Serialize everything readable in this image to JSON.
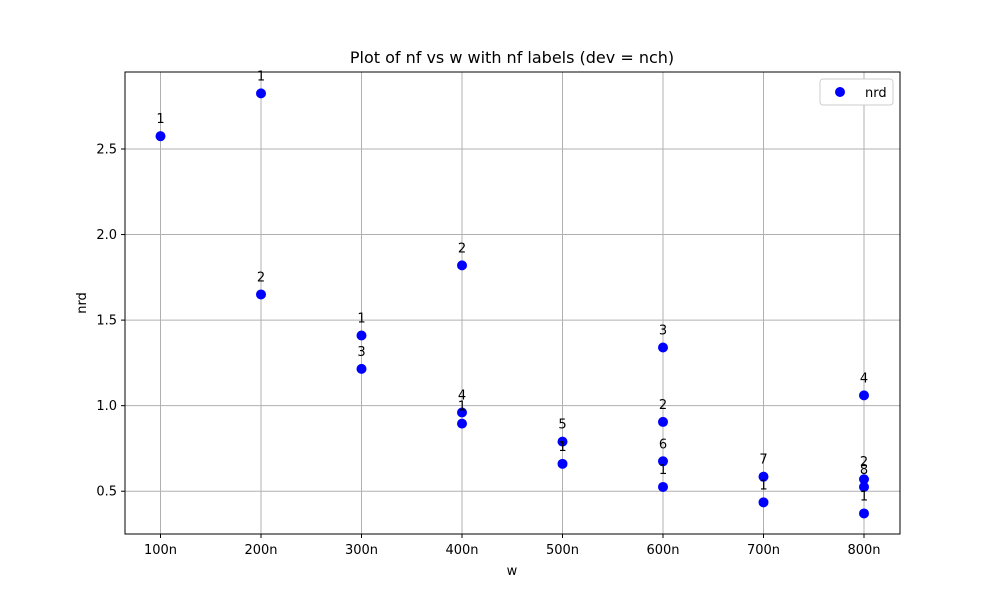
{
  "chart_data": {
    "type": "scatter",
    "title": "Plot of nf vs w with nf labels (dev = nch)",
    "xlabel": "w",
    "ylabel": "nrd",
    "x_ticks": [
      "100n",
      "200n",
      "300n",
      "400n",
      "500n",
      "600n",
      "700n",
      "800n"
    ],
    "y_ticks": [
      "0.5",
      "1.0",
      "1.5",
      "2.0",
      "2.5"
    ],
    "ylim": [
      0.25,
      2.95
    ],
    "grid": true,
    "legend_position": "top-right",
    "marker_color": "#0000ff",
    "series": [
      {
        "name": "nrd",
        "points": [
          {
            "x": "100n",
            "y": 2.575,
            "label": "1"
          },
          {
            "x": "200n",
            "y": 2.825,
            "label": "1"
          },
          {
            "x": "200n",
            "y": 1.65,
            "label": "2"
          },
          {
            "x": "300n",
            "y": 1.41,
            "label": "1"
          },
          {
            "x": "300n",
            "y": 1.215,
            "label": "3"
          },
          {
            "x": "400n",
            "y": 1.82,
            "label": "2"
          },
          {
            "x": "400n",
            "y": 0.96,
            "label": "4"
          },
          {
            "x": "400n",
            "y": 0.895,
            "label": "1"
          },
          {
            "x": "500n",
            "y": 0.79,
            "label": "5"
          },
          {
            "x": "500n",
            "y": 0.66,
            "label": "1"
          },
          {
            "x": "600n",
            "y": 1.34,
            "label": "3"
          },
          {
            "x": "600n",
            "y": 0.905,
            "label": "2"
          },
          {
            "x": "600n",
            "y": 0.675,
            "label": "6"
          },
          {
            "x": "600n",
            "y": 0.525,
            "label": "1"
          },
          {
            "x": "700n",
            "y": 0.585,
            "label": "7"
          },
          {
            "x": "700n",
            "y": 0.435,
            "label": "1"
          },
          {
            "x": "800n",
            "y": 1.06,
            "label": "4"
          },
          {
            "x": "800n",
            "y": 0.57,
            "label": "2"
          },
          {
            "x": "800n",
            "y": 0.525,
            "label": "8"
          },
          {
            "x": "800n",
            "y": 0.37,
            "label": "1"
          }
        ]
      }
    ]
  }
}
